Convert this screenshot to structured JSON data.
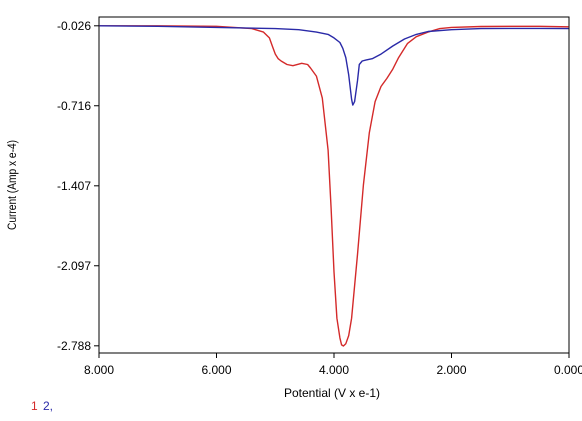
{
  "chart_data": {
    "type": "line",
    "title": "",
    "xlabel": "Potential (V x e-1)",
    "ylabel": "Current (Amp x e-4)",
    "xlim": [
      8.0,
      0.0
    ],
    "ylim": [
      -2.85,
      0.05
    ],
    "x_reversed": true,
    "grid": false,
    "legend_placement": "bottom-left",
    "x_ticks": [
      8.0,
      6.0,
      4.0,
      2.0,
      0.0
    ],
    "x_tick_labels": [
      "8.000",
      "6.000",
      "4.000",
      "2.000",
      "0.000"
    ],
    "y_ticks": [
      -0.026,
      -0.716,
      -1.407,
      -2.097,
      -2.788
    ],
    "y_tick_labels": [
      "-0.026",
      "-0.716",
      "-1.407",
      "-2.097",
      "-2.788"
    ],
    "legend": [
      {
        "label": "1",
        "color": "#d42a2a"
      },
      {
        "label": "2,",
        "color": "#2a2aa8"
      }
    ],
    "series": [
      {
        "color": "#d42a2a",
        "x": [
          8.0,
          7.0,
          6.0,
          5.4,
          5.2,
          5.1,
          5.05,
          5.0,
          4.95,
          4.9,
          4.8,
          4.7,
          4.55,
          4.45,
          4.4,
          4.3,
          4.2,
          4.1,
          4.05,
          4.0,
          3.95,
          3.9,
          3.87,
          3.84,
          3.8,
          3.75,
          3.7,
          3.6,
          3.5,
          3.4,
          3.3,
          3.2,
          3.1,
          3.0,
          2.9,
          2.75,
          2.6,
          2.4,
          2.2,
          2.0,
          1.5,
          1.0,
          0.5,
          0.0
        ],
        "y": [
          -0.026,
          -0.026,
          -0.03,
          -0.05,
          -0.08,
          -0.13,
          -0.2,
          -0.27,
          -0.31,
          -0.33,
          -0.36,
          -0.37,
          -0.35,
          -0.36,
          -0.39,
          -0.46,
          -0.65,
          -1.1,
          -1.6,
          -2.15,
          -2.55,
          -2.72,
          -2.78,
          -2.79,
          -2.77,
          -2.7,
          -2.55,
          -2.0,
          -1.4,
          -0.95,
          -0.68,
          -0.55,
          -0.48,
          -0.4,
          -0.3,
          -0.18,
          -0.12,
          -0.08,
          -0.05,
          -0.04,
          -0.032,
          -0.03,
          -0.03,
          -0.035
        ]
      },
      {
        "color": "#2a2aa8",
        "x": [
          8.0,
          7.0,
          6.0,
          5.0,
          4.6,
          4.3,
          4.1,
          4.0,
          3.9,
          3.85,
          3.8,
          3.75,
          3.7,
          3.68,
          3.65,
          3.6,
          3.57,
          3.52,
          3.45,
          3.35,
          3.2,
          3.0,
          2.8,
          2.6,
          2.4,
          2.0,
          1.5,
          1.0,
          0.5,
          0.0
        ],
        "y": [
          -0.026,
          -0.03,
          -0.04,
          -0.05,
          -0.06,
          -0.08,
          -0.1,
          -0.13,
          -0.17,
          -0.22,
          -0.3,
          -0.45,
          -0.66,
          -0.71,
          -0.68,
          -0.5,
          -0.36,
          -0.33,
          -0.32,
          -0.31,
          -0.27,
          -0.2,
          -0.14,
          -0.1,
          -0.075,
          -0.06,
          -0.05,
          -0.048,
          -0.048,
          -0.05
        ]
      }
    ]
  }
}
